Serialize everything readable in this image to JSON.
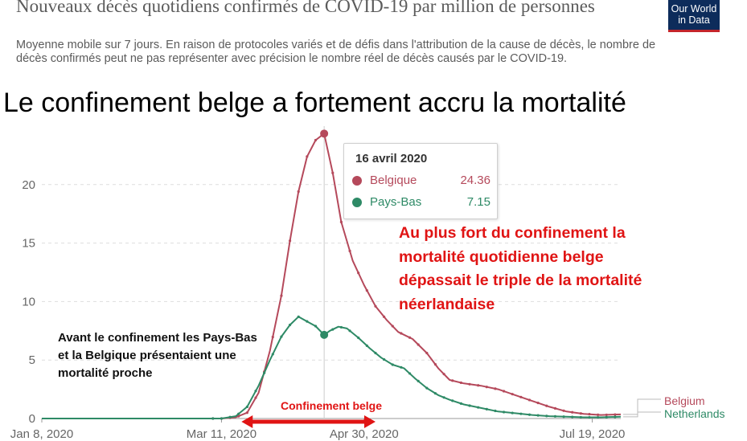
{
  "header": {
    "title": "Nouveaux décès quotidiens confirmés de COVID-19 par million de personnes",
    "subtitle": "Moyenne mobile sur 7 jours. En raison de protocoles variés et de défis dans l'attribution de la cause de décès, le nombre de décès confirmés peut ne pas représenter avec précision le nombre réel de décès causés par le COVID-19.",
    "logo": "Our World in Data"
  },
  "headline": "Le confinement belge a fortement accru la mortalité",
  "tooltip": {
    "date": "16 avril 2020",
    "rows": [
      {
        "name": "Belgique",
        "value": "24.36",
        "color": "#b5495b"
      },
      {
        "name": "Pays-Bas",
        "value": "7.15",
        "color": "#2e8a66"
      }
    ]
  },
  "annotations": {
    "peak_note": "Au plus fort du confinement la mortalité quotidienne belge dépassait le triple de la mortalité néerlandaise",
    "pre_lockdown_note": "Avant le confinement les Pays-Bas et la Belgique présentaient une mortalité proche",
    "lockdown_label": "Confinement belge"
  },
  "colors": {
    "belgium": "#b5495b",
    "netherlands": "#2e8a66",
    "annotation": "#e01414",
    "gridline": "#dddddd"
  },
  "chart_data": {
    "type": "line",
    "title": "",
    "xlabel": "",
    "ylabel": "",
    "x_ticks": [
      "Jan 8, 2020",
      "Mar 11, 2020",
      "Apr 30, 2020",
      "Jul 19, 2020"
    ],
    "y_ticks": [
      0,
      5,
      10,
      15,
      20
    ],
    "ylim": [
      0,
      25
    ],
    "grid": "horizontal dashed",
    "legend_position": "right end labels",
    "highlighted_date": "2020-04-16",
    "lockdown_period": [
      "2020-03-18",
      "2020-05-04"
    ],
    "series": [
      {
        "name": "Belgium",
        "points": [
          [
            "2020-01-08",
            0
          ],
          [
            "2020-03-11",
            0
          ],
          [
            "2020-03-16",
            0.1
          ],
          [
            "2020-03-20",
            0.5
          ],
          [
            "2020-03-24",
            2.2
          ],
          [
            "2020-03-28",
            5.8
          ],
          [
            "2020-04-01",
            10.5
          ],
          [
            "2020-04-04",
            15.2
          ],
          [
            "2020-04-07",
            19.4
          ],
          [
            "2020-04-10",
            22.4
          ],
          [
            "2020-04-13",
            23.8
          ],
          [
            "2020-04-16",
            24.36
          ],
          [
            "2020-04-19",
            21
          ],
          [
            "2020-04-22",
            16.8
          ],
          [
            "2020-04-26",
            13.5
          ],
          [
            "2020-04-30",
            11.4
          ],
          [
            "2020-05-04",
            9.6
          ],
          [
            "2020-05-08",
            8.4
          ],
          [
            "2020-05-12",
            7.4
          ],
          [
            "2020-05-17",
            6.8
          ],
          [
            "2020-05-22",
            5.6
          ],
          [
            "2020-05-26",
            4.3
          ],
          [
            "2020-05-30",
            3.3
          ],
          [
            "2020-06-04",
            3.0
          ],
          [
            "2020-06-10",
            2.8
          ],
          [
            "2020-06-16",
            2.5
          ],
          [
            "2020-06-22",
            2.0
          ],
          [
            "2020-06-28",
            1.5
          ],
          [
            "2020-07-04",
            1.0
          ],
          [
            "2020-07-10",
            0.6
          ],
          [
            "2020-07-16",
            0.4
          ],
          [
            "2020-07-22",
            0.3
          ],
          [
            "2020-07-29",
            0.35
          ]
        ]
      },
      {
        "name": "Netherlands",
        "points": [
          [
            "2020-01-08",
            0
          ],
          [
            "2020-03-11",
            0
          ],
          [
            "2020-03-16",
            0.2
          ],
          [
            "2020-03-20",
            1.0
          ],
          [
            "2020-03-24",
            2.8
          ],
          [
            "2020-03-28",
            5.0
          ],
          [
            "2020-04-01",
            7.0
          ],
          [
            "2020-04-04",
            8.0
          ],
          [
            "2020-04-07",
            8.7
          ],
          [
            "2020-04-10",
            8.3
          ],
          [
            "2020-04-13",
            7.9
          ],
          [
            "2020-04-16",
            7.15
          ],
          [
            "2020-04-18",
            7.5
          ],
          [
            "2020-04-21",
            7.85
          ],
          [
            "2020-04-24",
            7.7
          ],
          [
            "2020-04-28",
            6.9
          ],
          [
            "2020-05-02",
            6.0
          ],
          [
            "2020-05-06",
            5.2
          ],
          [
            "2020-05-10",
            4.6
          ],
          [
            "2020-05-14",
            4.3
          ],
          [
            "2020-05-18",
            3.4
          ],
          [
            "2020-05-22",
            2.6
          ],
          [
            "2020-05-26",
            2.0
          ],
          [
            "2020-05-30",
            1.6
          ],
          [
            "2020-06-04",
            1.2
          ],
          [
            "2020-06-10",
            0.9
          ],
          [
            "2020-06-16",
            0.6
          ],
          [
            "2020-06-22",
            0.45
          ],
          [
            "2020-06-28",
            0.3
          ],
          [
            "2020-07-04",
            0.2
          ],
          [
            "2020-07-10",
            0.15
          ],
          [
            "2020-07-16",
            0.1
          ],
          [
            "2020-07-22",
            0.1
          ],
          [
            "2020-07-29",
            0.15
          ]
        ]
      }
    ]
  }
}
